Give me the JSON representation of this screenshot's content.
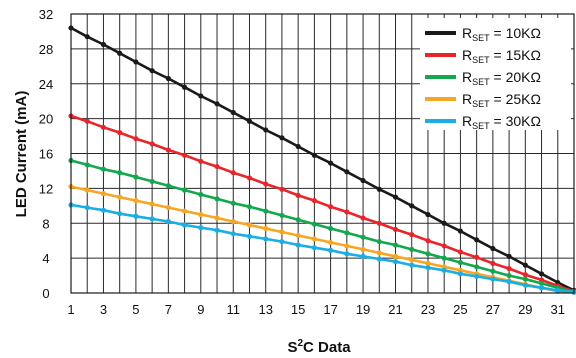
{
  "chart_data": {
    "type": "line",
    "title": "",
    "xlabel_main": "S",
    "xlabel_sup": "2",
    "xlabel_rest": "C Data",
    "ylabel": "LED Current (mA)",
    "xlim": [
      1,
      32
    ],
    "ylim": [
      0,
      32
    ],
    "x_ticks": [
      1,
      3,
      5,
      7,
      9,
      11,
      13,
      15,
      17,
      19,
      21,
      23,
      25,
      27,
      29,
      31
    ],
    "y_ticks": [
      0,
      4,
      8,
      12,
      16,
      20,
      24,
      28,
      32
    ],
    "grid": true,
    "legend_position": "top-right",
    "x": [
      1,
      2,
      3,
      4,
      5,
      6,
      7,
      8,
      9,
      10,
      11,
      12,
      13,
      14,
      15,
      16,
      17,
      18,
      19,
      20,
      21,
      22,
      23,
      24,
      25,
      26,
      27,
      28,
      29,
      30,
      31,
      32
    ],
    "series": [
      {
        "name_prefix": "R",
        "name_sub": "SET",
        "name_suffix": " = 10KΩ",
        "color": "#1a1a1a",
        "values": [
          30.4,
          29.4,
          28.5,
          27.5,
          26.5,
          25.5,
          24.6,
          23.6,
          22.6,
          21.7,
          20.7,
          19.7,
          18.7,
          17.8,
          16.8,
          15.8,
          14.9,
          13.9,
          12.9,
          11.9,
          11.0,
          10.0,
          9.0,
          8.0,
          7.1,
          6.1,
          5.1,
          4.2,
          3.2,
          2.2,
          1.2,
          0.3
        ]
      },
      {
        "name_prefix": "R",
        "name_sub": "SET",
        "name_suffix": " = 15KΩ",
        "color": "#e8262a",
        "values": [
          20.3,
          19.7,
          19.0,
          18.4,
          17.7,
          17.1,
          16.4,
          15.8,
          15.1,
          14.5,
          13.8,
          13.2,
          12.5,
          11.9,
          11.2,
          10.6,
          9.9,
          9.3,
          8.6,
          8.0,
          7.3,
          6.7,
          6.0,
          5.4,
          4.7,
          4.1,
          3.4,
          2.8,
          2.1,
          1.5,
          0.8,
          0.2
        ]
      },
      {
        "name_prefix": "R",
        "name_sub": "SET",
        "name_suffix": " = 20KΩ",
        "color": "#12a84e",
        "values": [
          15.2,
          14.7,
          14.2,
          13.8,
          13.3,
          12.8,
          12.3,
          11.8,
          11.3,
          10.8,
          10.3,
          9.9,
          9.4,
          8.9,
          8.4,
          7.9,
          7.4,
          6.9,
          6.4,
          5.9,
          5.5,
          5.0,
          4.5,
          4.0,
          3.5,
          3.0,
          2.5,
          2.0,
          1.6,
          1.1,
          0.6,
          0.1
        ]
      },
      {
        "name_prefix": "R",
        "name_sub": "SET",
        "name_suffix": " = 25KΩ",
        "color": "#f5a623",
        "values": [
          12.2,
          11.8,
          11.4,
          11.0,
          10.6,
          10.2,
          9.8,
          9.4,
          9.0,
          8.6,
          8.2,
          7.8,
          7.4,
          7.0,
          6.6,
          6.2,
          5.8,
          5.4,
          5.0,
          4.6,
          4.2,
          3.8,
          3.4,
          3.0,
          2.6,
          2.2,
          1.8,
          1.4,
          1.0,
          0.6,
          0.2,
          0.1
        ]
      },
      {
        "name_prefix": "R",
        "name_sub": "SET",
        "name_suffix": " = 30KΩ",
        "color": "#1aaee5",
        "values": [
          10.1,
          9.8,
          9.5,
          9.1,
          8.8,
          8.5,
          8.2,
          7.8,
          7.5,
          7.2,
          6.8,
          6.5,
          6.2,
          5.9,
          5.5,
          5.2,
          4.9,
          4.5,
          4.2,
          3.9,
          3.6,
          3.2,
          2.9,
          2.6,
          2.2,
          1.9,
          1.6,
          1.3,
          0.9,
          0.6,
          0.3,
          0.1
        ]
      }
    ]
  }
}
